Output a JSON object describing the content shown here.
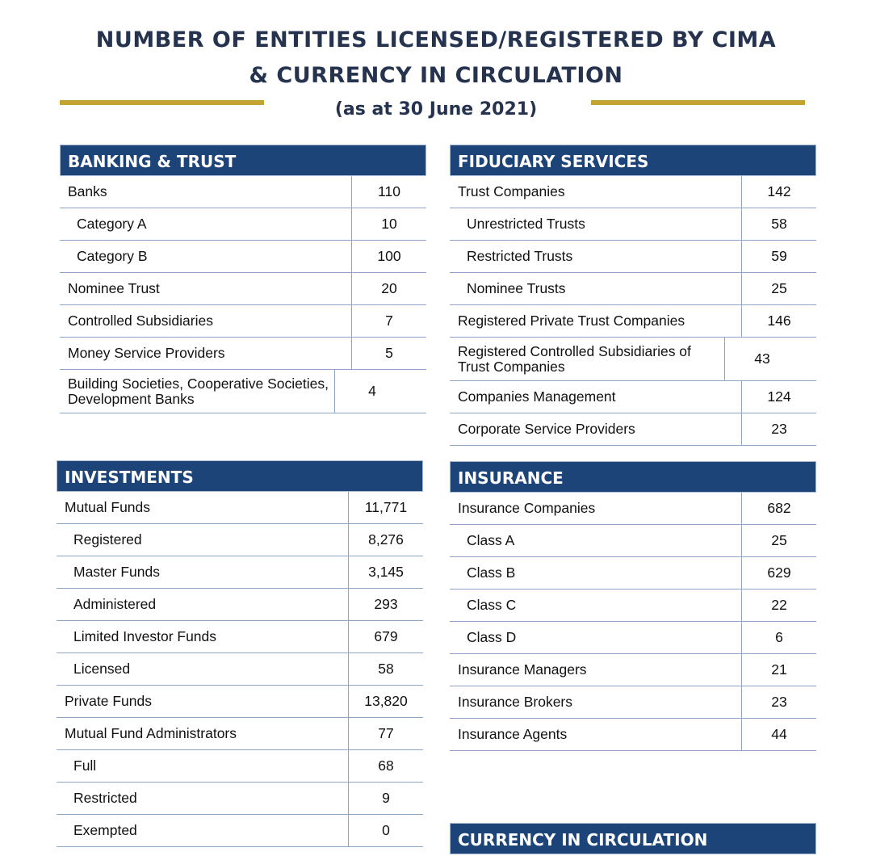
{
  "title_line1": "NUMBER OF ENTITIES LICENSED/REGISTERED BY CIMA",
  "title_line2": "& CURRENCY IN CIRCULATION",
  "subtitle": "(as at 30 June 2021)",
  "colors": {
    "header_bg": "#1d4479",
    "accent_gold": "#c3a431",
    "title": "#25334f"
  },
  "sections": [
    {
      "id": "banking",
      "title": "BANKING & TRUST",
      "rows": [
        {
          "label": "Banks",
          "value": "110",
          "indent": false
        },
        {
          "label": "Category A",
          "value": "10",
          "indent": true
        },
        {
          "label": "Category B",
          "value": "100",
          "indent": true
        },
        {
          "label": "Nominee Trust",
          "value": "20",
          "indent": false
        },
        {
          "label": "Controlled Subsidiaries",
          "value": "7",
          "indent": false
        },
        {
          "label": "Money Service Providers",
          "value": "5",
          "indent": false
        },
        {
          "label": "Building Societies, Cooperative Societies, Development Banks",
          "value": "4",
          "indent": false
        }
      ]
    },
    {
      "id": "fiduciary",
      "title": "FIDUCIARY SERVICES",
      "rows": [
        {
          "label": "Trust Companies",
          "value": "142",
          "indent": false
        },
        {
          "label": "Unrestricted Trusts",
          "value": "58",
          "indent": true
        },
        {
          "label": "Restricted Trusts",
          "value": "59",
          "indent": true
        },
        {
          "label": "Nominee Trusts",
          "value": "25",
          "indent": true
        },
        {
          "label": "Registered Private Trust Companies",
          "value": "146",
          "indent": false
        },
        {
          "label": "Registered Controlled Subsidiaries of Trust Companies",
          "value": "43",
          "indent": false
        },
        {
          "label": "Companies Management",
          "value": "124",
          "indent": false
        },
        {
          "label": "Corporate Service Providers",
          "value": "23",
          "indent": false
        }
      ]
    },
    {
      "id": "investments",
      "title": "INVESTMENTS",
      "rows": [
        {
          "label": "Mutual Funds",
          "value": "11,771",
          "indent": false
        },
        {
          "label": "Registered",
          "value": "8,276",
          "indent": true
        },
        {
          "label": "Master Funds",
          "value": "3,145",
          "indent": true
        },
        {
          "label": "Administered",
          "value": "293",
          "indent": true
        },
        {
          "label": "Limited Investor Funds",
          "value": "679",
          "indent": true
        },
        {
          "label": "Licensed",
          "value": "58",
          "indent": true
        },
        {
          "label": "Private Funds",
          "value": "13,820",
          "indent": false
        },
        {
          "label": "Mutual Fund Administrators",
          "value": "77",
          "indent": false
        },
        {
          "label": "Full",
          "value": "68",
          "indent": true
        },
        {
          "label": "Restricted",
          "value": "9",
          "indent": true
        },
        {
          "label": "Exempted",
          "value": "0",
          "indent": true
        }
      ]
    },
    {
      "id": "insurance",
      "title": "INSURANCE",
      "rows": [
        {
          "label": "Insurance Companies",
          "value": "682",
          "indent": false
        },
        {
          "label": "Class A",
          "value": "25",
          "indent": true
        },
        {
          "label": "Class B",
          "value": "629",
          "indent": true
        },
        {
          "label": "Class C",
          "value": "22",
          "indent": true
        },
        {
          "label": "Class D",
          "value": "6",
          "indent": true
        },
        {
          "label": "Insurance Managers",
          "value": "21",
          "indent": false
        },
        {
          "label": "Insurance Brokers",
          "value": "23",
          "indent": false
        },
        {
          "label": "Insurance Agents",
          "value": "44",
          "indent": false
        }
      ]
    },
    {
      "id": "currency",
      "title": "CURRENCY IN CIRCULATION",
      "rows": []
    }
  ]
}
